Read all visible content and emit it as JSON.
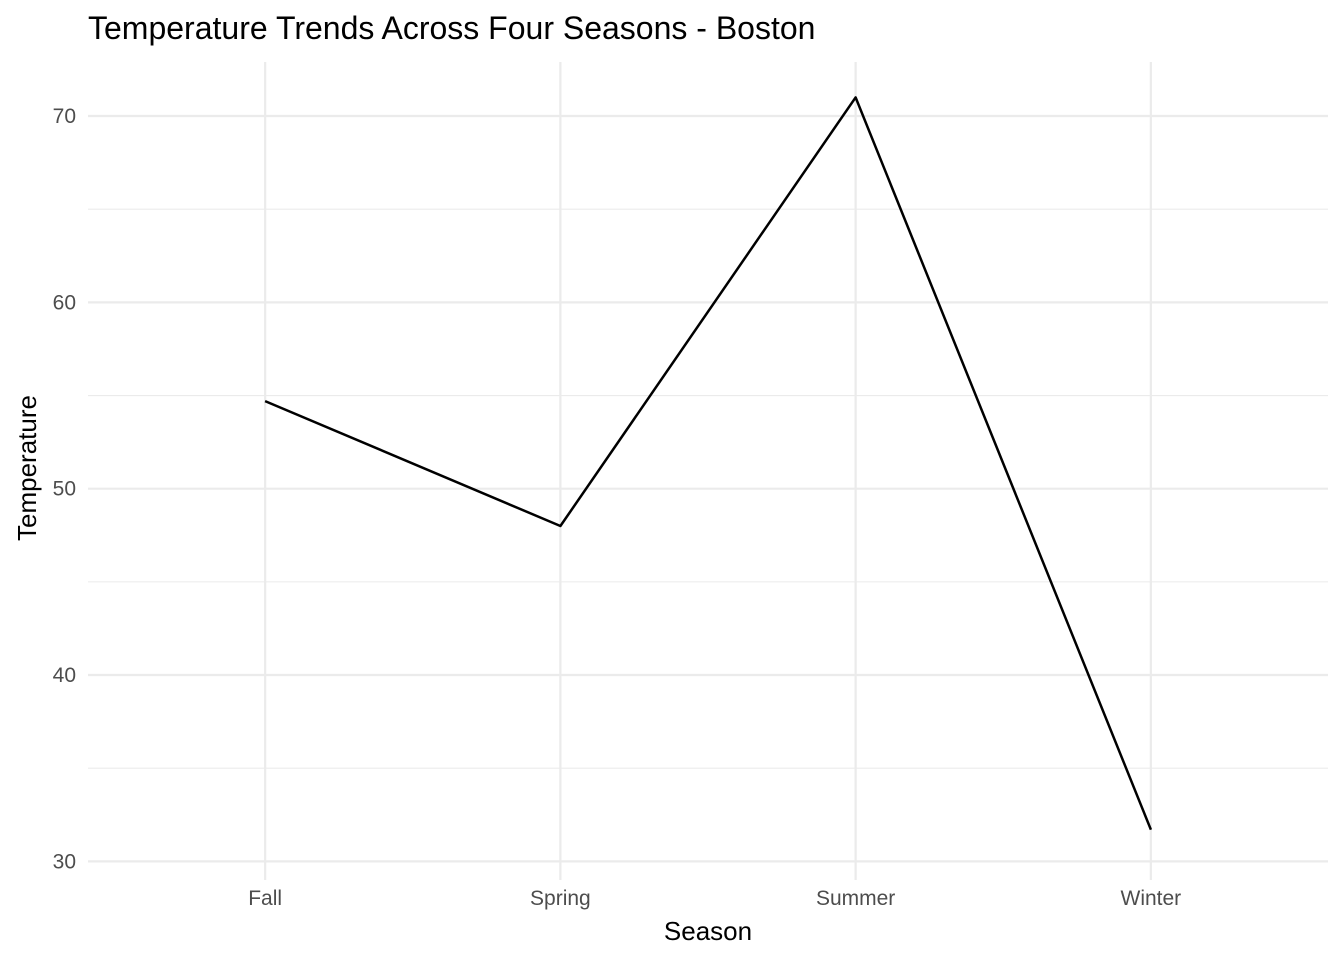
{
  "chart_data": {
    "type": "line",
    "title": "Temperature Trends Across Four Seasons - Boston",
    "xlabel": "Season",
    "ylabel": "Temperature",
    "categories": [
      "Fall",
      "Spring",
      "Summer",
      "Winter"
    ],
    "series": [
      {
        "values": [
          54.7,
          48,
          71,
          31.7
        ],
        "color": "#000000"
      }
    ],
    "ylim": [
      29.0,
      72.9
    ],
    "yticks": [
      30,
      40,
      50,
      60,
      70
    ],
    "grid": true,
    "legend": "none"
  }
}
